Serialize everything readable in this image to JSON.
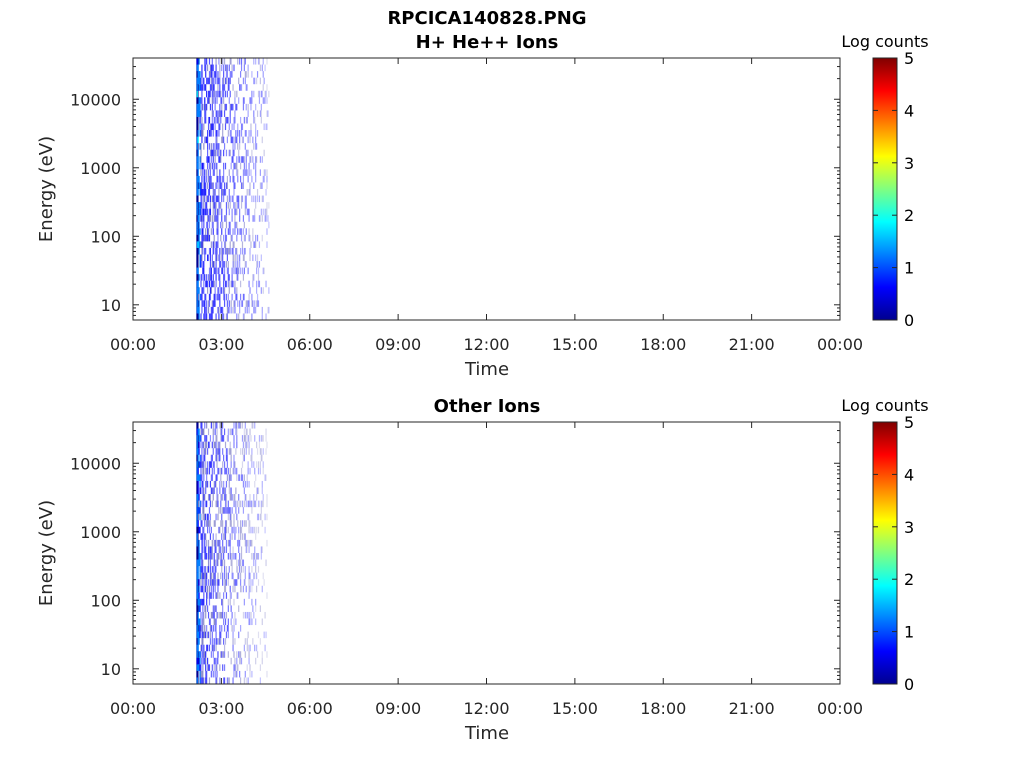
{
  "figure_title": "RPCICA140828.PNG",
  "colorbar_colors": [
    "#00008f",
    "#0000ff",
    "#0080ff",
    "#00ffff",
    "#80ff80",
    "#ffff00",
    "#ff8000",
    "#ff0000",
    "#800000"
  ],
  "chart_data": [
    {
      "type": "heatmap",
      "title": "H+ He++ Ions",
      "xlabel": "Time",
      "ylabel": "Energy (eV)",
      "yscale": "log",
      "ylim": [
        6,
        40000
      ],
      "xlim_hours": [
        0,
        24
      ],
      "x_ticks": [
        "00:00",
        "03:00",
        "06:00",
        "09:00",
        "12:00",
        "15:00",
        "18:00",
        "21:00",
        "00:00"
      ],
      "y_ticks": [
        "10",
        "100",
        "1000",
        "10000"
      ],
      "colorbar": {
        "label": "Log counts",
        "range": [
          0,
          5
        ],
        "ticks": [
          "0",
          "1",
          "2",
          "3",
          "4",
          "5"
        ]
      },
      "data_window_hours": [
        2.15,
        4.6
      ],
      "typical_log_counts": [
        0.2,
        0.9
      ]
    },
    {
      "type": "heatmap",
      "title": "Other Ions",
      "xlabel": "Time",
      "ylabel": "Energy (eV)",
      "yscale": "log",
      "ylim": [
        6,
        40000
      ],
      "xlim_hours": [
        0,
        24
      ],
      "x_ticks": [
        "00:00",
        "03:00",
        "06:00",
        "09:00",
        "12:00",
        "15:00",
        "18:00",
        "21:00",
        "00:00"
      ],
      "y_ticks": [
        "10",
        "100",
        "1000",
        "10000"
      ],
      "colorbar": {
        "label": "Log counts",
        "range": [
          0,
          5
        ],
        "ticks": [
          "0",
          "1",
          "2",
          "3",
          "4",
          "5"
        ]
      },
      "data_window_hours": [
        2.15,
        4.55
      ],
      "typical_log_counts": [
        0.1,
        0.8
      ]
    }
  ]
}
